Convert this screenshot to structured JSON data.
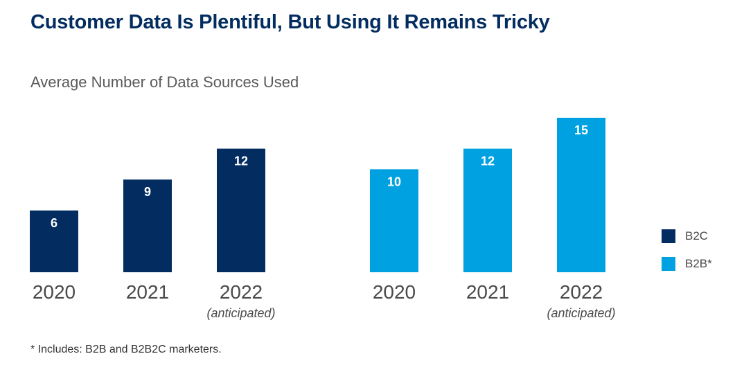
{
  "title": "Customer Data Is Plentiful, But Using It Remains Tricky",
  "subtitle": "Average Number of Data Sources Used",
  "footnote": "* Includes: B2B and B2B2C marketers.",
  "colors": {
    "b2c": "#032d60",
    "b2b": "#00a1e0"
  },
  "chart_data": {
    "type": "bar",
    "categories": [
      "2020",
      "2021",
      "2022"
    ],
    "category_notes": [
      "",
      "",
      "(anticipated)"
    ],
    "series": [
      {
        "name": "B2C",
        "values": [
          6,
          9,
          12
        ]
      },
      {
        "name": "B2B*",
        "values": [
          10,
          12,
          15
        ]
      }
    ],
    "title": "Customer Data Is Plentiful, But Using It Remains Tricky",
    "subtitle": "Average Number of Data Sources Used",
    "legend_position": "right",
    "grid": false,
    "ylim": [
      0,
      15
    ]
  }
}
